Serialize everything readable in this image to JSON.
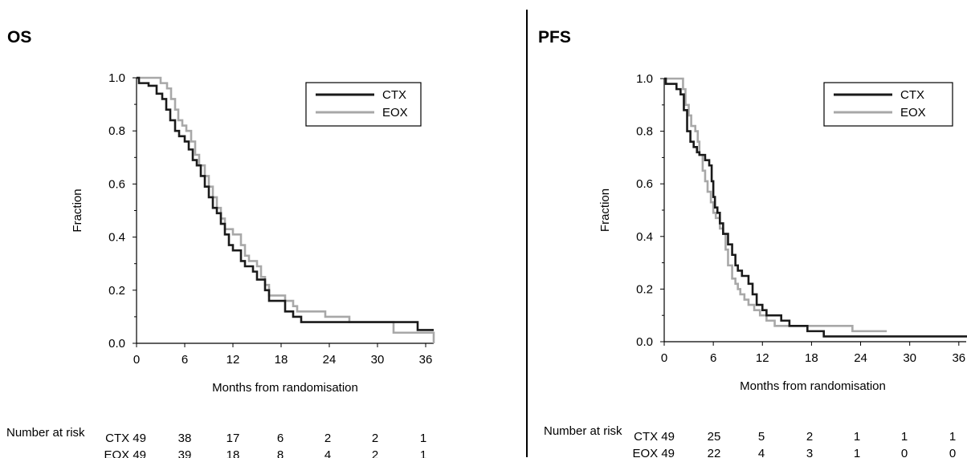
{
  "panels": [
    {
      "id": "os",
      "title": "OS",
      "risk": {
        "label": "Number at risk",
        "rows": [
          {
            "arm": "CTX 49",
            "values": [
              "38",
              "17",
              "6",
              "2",
              "2",
              "1"
            ]
          },
          {
            "arm": "EOX 49",
            "values": [
              "39",
              "18",
              "8",
              "4",
              "2",
              "1"
            ]
          }
        ]
      }
    },
    {
      "id": "pfs",
      "title": "PFS",
      "risk": {
        "label": "Number at risk",
        "rows": [
          {
            "arm": "CTX 49",
            "values": [
              "25",
              "5",
              "2",
              "1",
              "1",
              "1"
            ]
          },
          {
            "arm": "EOX 49",
            "values": [
              "22",
              "4",
              "3",
              "1",
              "0",
              "0"
            ]
          }
        ]
      }
    }
  ],
  "chart_data": [
    {
      "type": "line",
      "step": true,
      "title": "OS",
      "xlabel": "Months from randomisation",
      "ylabel": "Fraction",
      "xlim": [
        0,
        37
      ],
      "ylim": [
        0,
        1.0
      ],
      "xticks": [
        0,
        6,
        12,
        18,
        24,
        30,
        36
      ],
      "yticks": [
        "0.0",
        "0.2",
        "0.4",
        "0.6",
        "0.8",
        "1.0"
      ],
      "grid": false,
      "legend_position": "top-right",
      "series": [
        {
          "name": "CTX",
          "color": "#1a1a1a",
          "points": [
            [
              0,
              1.0
            ],
            [
              0.3,
              0.98
            ],
            [
              1.5,
              0.97
            ],
            [
              2.5,
              0.94
            ],
            [
              3.2,
              0.92
            ],
            [
              3.7,
              0.88
            ],
            [
              4.2,
              0.84
            ],
            [
              4.8,
              0.8
            ],
            [
              5.3,
              0.78
            ],
            [
              6.0,
              0.76
            ],
            [
              6.5,
              0.73
            ],
            [
              7.0,
              0.69
            ],
            [
              7.5,
              0.67
            ],
            [
              8.0,
              0.63
            ],
            [
              8.5,
              0.59
            ],
            [
              9.0,
              0.55
            ],
            [
              9.5,
              0.51
            ],
            [
              10.0,
              0.49
            ],
            [
              10.5,
              0.45
            ],
            [
              11.0,
              0.41
            ],
            [
              11.5,
              0.37
            ],
            [
              12.0,
              0.35
            ],
            [
              13.0,
              0.31
            ],
            [
              13.5,
              0.29
            ],
            [
              14.5,
              0.27
            ],
            [
              15.0,
              0.24
            ],
            [
              16.0,
              0.2
            ],
            [
              16.5,
              0.16
            ],
            [
              18.5,
              0.12
            ],
            [
              19.5,
              0.1
            ],
            [
              20.5,
              0.08
            ],
            [
              35.0,
              0.05
            ],
            [
              37.0,
              0.05
            ]
          ]
        },
        {
          "name": "EOX",
          "color": "#a8a8a8",
          "points": [
            [
              0,
              1.0
            ],
            [
              2.0,
              1.0
            ],
            [
              3.0,
              0.98
            ],
            [
              3.8,
              0.96
            ],
            [
              4.3,
              0.92
            ],
            [
              4.8,
              0.88
            ],
            [
              5.2,
              0.84
            ],
            [
              5.7,
              0.82
            ],
            [
              6.2,
              0.8
            ],
            [
              6.8,
              0.76
            ],
            [
              7.3,
              0.71
            ],
            [
              7.8,
              0.67
            ],
            [
              8.5,
              0.63
            ],
            [
              9.0,
              0.59
            ],
            [
              9.5,
              0.55
            ],
            [
              10.0,
              0.51
            ],
            [
              10.5,
              0.47
            ],
            [
              11.0,
              0.43
            ],
            [
              12.0,
              0.41
            ],
            [
              13.0,
              0.37
            ],
            [
              13.5,
              0.33
            ],
            [
              14.0,
              0.31
            ],
            [
              15.0,
              0.29
            ],
            [
              15.5,
              0.25
            ],
            [
              16.0,
              0.22
            ],
            [
              16.5,
              0.18
            ],
            [
              18.5,
              0.16
            ],
            [
              19.5,
              0.14
            ],
            [
              20.0,
              0.12
            ],
            [
              23.5,
              0.1
            ],
            [
              26.5,
              0.08
            ],
            [
              32.0,
              0.04
            ],
            [
              37.0,
              0.0
            ]
          ]
        }
      ]
    },
    {
      "type": "line",
      "step": true,
      "title": "PFS",
      "xlabel": "Months from randomisation",
      "ylabel": "Fraction",
      "xlim": [
        0,
        37
      ],
      "ylim": [
        0,
        1.0
      ],
      "xticks": [
        0,
        6,
        12,
        18,
        24,
        30,
        36
      ],
      "yticks": [
        "0.0",
        "0.2",
        "0.4",
        "0.6",
        "0.8",
        "1.0"
      ],
      "grid": false,
      "legend_position": "top-right",
      "series": [
        {
          "name": "CTX",
          "color": "#1a1a1a",
          "points": [
            [
              0,
              1.0
            ],
            [
              0.2,
              0.98
            ],
            [
              1.5,
              0.96
            ],
            [
              2.0,
              0.94
            ],
            [
              2.4,
              0.88
            ],
            [
              2.8,
              0.8
            ],
            [
              3.2,
              0.76
            ],
            [
              3.6,
              0.74
            ],
            [
              4.0,
              0.72
            ],
            [
              4.3,
              0.71
            ],
            [
              5.0,
              0.69
            ],
            [
              5.5,
              0.67
            ],
            [
              5.8,
              0.61
            ],
            [
              6.0,
              0.55
            ],
            [
              6.2,
              0.51
            ],
            [
              6.5,
              0.49
            ],
            [
              6.8,
              0.45
            ],
            [
              7.2,
              0.41
            ],
            [
              7.8,
              0.37
            ],
            [
              8.3,
              0.33
            ],
            [
              8.7,
              0.29
            ],
            [
              9.0,
              0.27
            ],
            [
              9.5,
              0.25
            ],
            [
              10.3,
              0.22
            ],
            [
              10.8,
              0.18
            ],
            [
              11.3,
              0.14
            ],
            [
              12.0,
              0.12
            ],
            [
              12.5,
              0.1
            ],
            [
              14.3,
              0.08
            ],
            [
              15.3,
              0.06
            ],
            [
              17.5,
              0.04
            ],
            [
              19.5,
              0.02
            ],
            [
              37.0,
              0.02
            ]
          ]
        },
        {
          "name": "EOX",
          "color": "#a8a8a8",
          "points": [
            [
              0,
              1.0
            ],
            [
              2.0,
              1.0
            ],
            [
              2.3,
              0.96
            ],
            [
              2.6,
              0.9
            ],
            [
              3.0,
              0.86
            ],
            [
              3.3,
              0.82
            ],
            [
              3.8,
              0.8
            ],
            [
              4.1,
              0.76
            ],
            [
              4.3,
              0.71
            ],
            [
              4.7,
              0.65
            ],
            [
              5.0,
              0.61
            ],
            [
              5.3,
              0.57
            ],
            [
              5.7,
              0.53
            ],
            [
              6.0,
              0.49
            ],
            [
              6.3,
              0.47
            ],
            [
              6.8,
              0.43
            ],
            [
              7.2,
              0.41
            ],
            [
              7.5,
              0.35
            ],
            [
              7.8,
              0.29
            ],
            [
              8.3,
              0.24
            ],
            [
              8.7,
              0.22
            ],
            [
              9.0,
              0.2
            ],
            [
              9.3,
              0.18
            ],
            [
              9.8,
              0.16
            ],
            [
              10.3,
              0.14
            ],
            [
              11.0,
              0.12
            ],
            [
              11.7,
              0.1
            ],
            [
              12.5,
              0.08
            ],
            [
              13.5,
              0.06
            ],
            [
              16.5,
              0.06
            ],
            [
              20.5,
              0.06
            ],
            [
              23.0,
              0.04
            ],
            [
              27.2,
              0.04
            ]
          ]
        }
      ]
    }
  ]
}
